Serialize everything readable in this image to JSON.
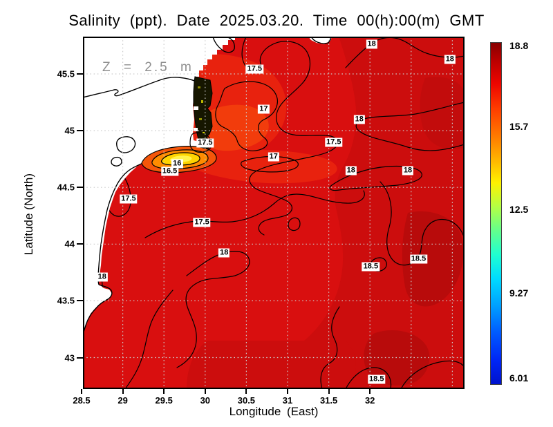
{
  "title": "Salinity (ppt). Date 2025.03.20. Time 00(h):00(m) GMT",
  "annotation": "Z = 2.5 m",
  "axes": {
    "x_label": "Longitude (East)",
    "y_label": "Latitude (North)",
    "x_ticks": [
      "28.5",
      "29",
      "29.5",
      "30",
      "30.5",
      "31",
      "31.5",
      "32"
    ],
    "y_ticks": [
      "45.5",
      "45",
      "44.5",
      "44",
      "43.5",
      "43"
    ]
  },
  "colorbar": {
    "labels": [
      "18.8",
      "15.7",
      "12.5",
      "9.27",
      "6.01"
    ],
    "max": 18.8,
    "min": 6.01,
    "colormap": "jet"
  },
  "colors": {
    "water_base": "#d90f0f",
    "water_dark": "#b80b0b",
    "water_light": "#f23c0c",
    "plume_orange": "#ff8c00",
    "plume_yellow": "#ffd400",
    "river_mouth_dark": "#161600",
    "land": "#ffffff",
    "contour": "#000000",
    "grid": "#cccccc"
  },
  "chart_data": {
    "type": "heatmap",
    "title": "Salinity (ppt). Date 2025.03.20. Time 00(h):00(m) GMT",
    "variable": "Salinity (ppt)",
    "depth_label": "Z = 2.5 m",
    "xlabel": "Longitude (East)",
    "ylabel": "Latitude (North)",
    "xlim": [
      28.5,
      33.12
    ],
    "ylim": [
      42.72,
      45.83
    ],
    "x_ticks": [
      28.5,
      29,
      29.5,
      30,
      30.5,
      31,
      31.5,
      32
    ],
    "y_ticks": [
      43,
      43.5,
      44,
      44.5,
      45,
      45.5
    ],
    "grid": "dotted, 0.5 degree interval, both axes",
    "legend_position": "right colorbar",
    "colorbar_ticks": [
      18.8,
      15.7,
      12.5,
      9.27,
      6.01
    ],
    "colorbar_range": [
      6.01,
      18.8
    ],
    "contour_levels_labeled": [
      16,
      16.5,
      17,
      17.5,
      18,
      18.5
    ],
    "contour_labels": [
      {
        "value": "18",
        "lon": 32.02,
        "lat": 45.76
      },
      {
        "value": "18",
        "lon": 32.97,
        "lat": 45.63
      },
      {
        "value": "17.5",
        "lon": 30.6,
        "lat": 45.54
      },
      {
        "value": "17",
        "lon": 30.71,
        "lat": 45.19
      },
      {
        "value": "18",
        "lon": 31.87,
        "lat": 45.1
      },
      {
        "value": "17.5",
        "lon": 31.56,
        "lat": 44.9
      },
      {
        "value": "17.5",
        "lon": 30.0,
        "lat": 44.89
      },
      {
        "value": "18",
        "lon": 31.77,
        "lat": 44.65
      },
      {
        "value": "18",
        "lon": 32.46,
        "lat": 44.65
      },
      {
        "value": "17",
        "lon": 30.83,
        "lat": 44.77
      },
      {
        "value": "16",
        "lon": 29.66,
        "lat": 44.71
      },
      {
        "value": "16.5",
        "lon": 29.57,
        "lat": 44.64
      },
      {
        "value": "17.5",
        "lon": 29.07,
        "lat": 44.4
      },
      {
        "value": "17.5",
        "lon": 29.96,
        "lat": 44.19
      },
      {
        "value": "18",
        "lon": 30.23,
        "lat": 43.92
      },
      {
        "value": "18",
        "lon": 28.75,
        "lat": 43.71
      },
      {
        "value": "18.5",
        "lon": 32.59,
        "lat": 43.87
      },
      {
        "value": "18.5",
        "lon": 32.01,
        "lat": 43.8
      },
      {
        "value": "18.5",
        "lon": 32.08,
        "lat": 42.81
      }
    ]
  }
}
